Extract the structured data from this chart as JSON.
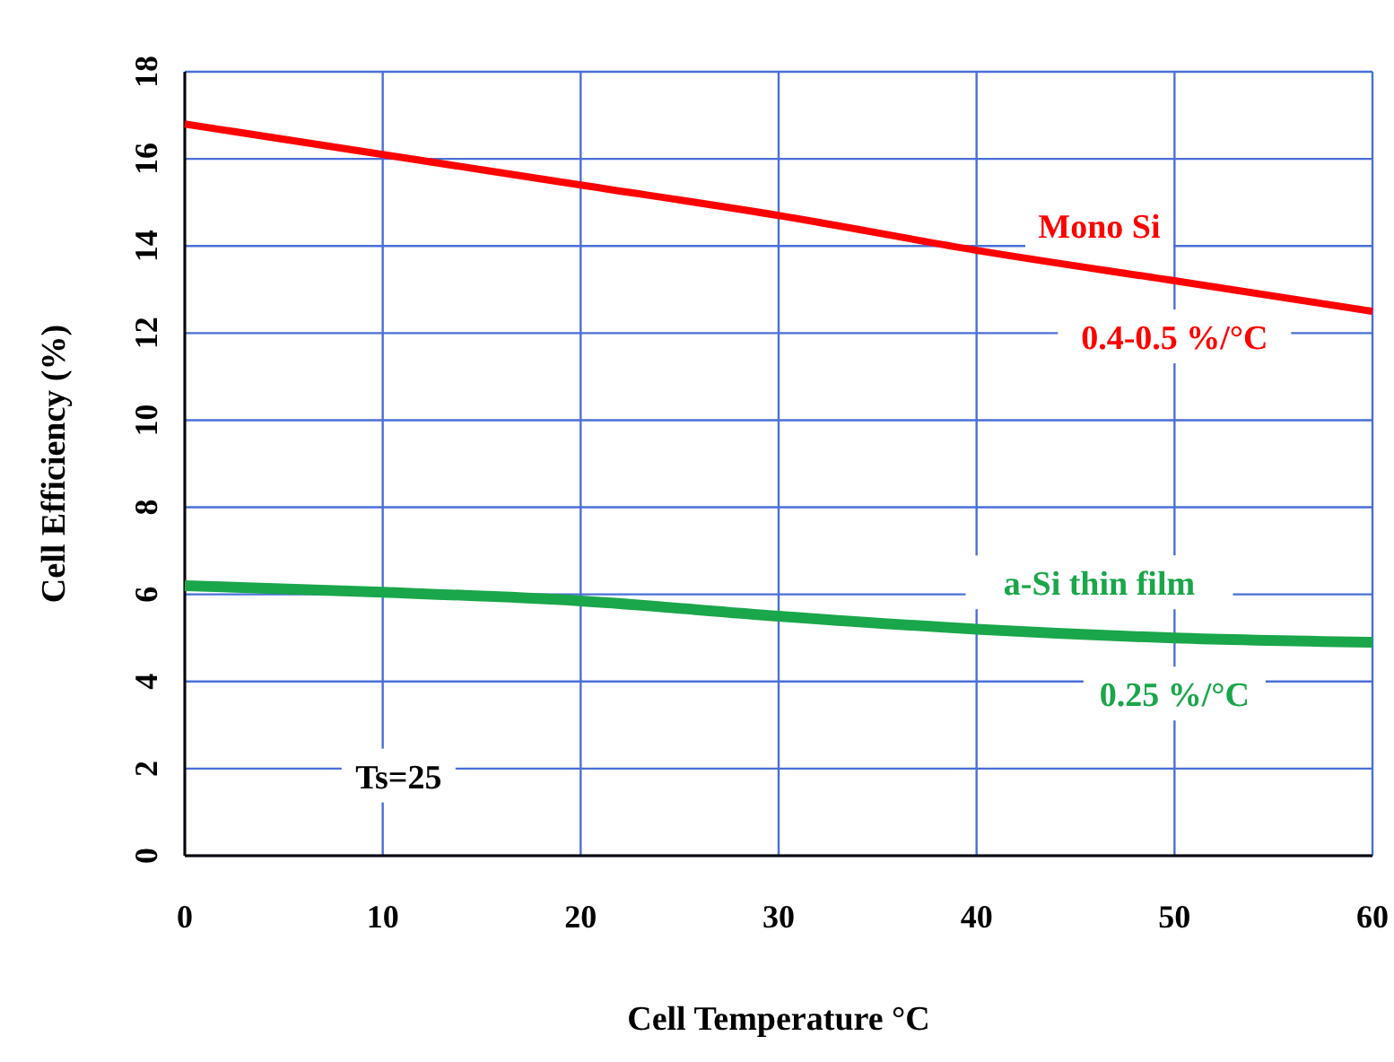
{
  "chart_data": {
    "type": "line",
    "xlabel": "Cell Temperature °C",
    "ylabel": "Cell Efficiency (%)",
    "x": [
      0,
      10,
      20,
      30,
      40,
      50,
      60
    ],
    "series": [
      {
        "name": "Mono Si",
        "color": "#ff0000",
        "values": [
          16.8,
          16.1,
          15.4,
          14.7,
          13.9,
          13.2,
          12.5
        ]
      },
      {
        "name": "a-Si thin film",
        "color": "#1aa64a",
        "values": [
          6.2,
          6.05,
          5.85,
          5.5,
          5.2,
          5.0,
          4.9
        ]
      }
    ],
    "xlim": [
      0,
      60
    ],
    "ylim": [
      0,
      18
    ],
    "xticks": [
      0,
      10,
      20,
      30,
      40,
      50,
      60
    ],
    "yticks": [
      0,
      2,
      4,
      6,
      8,
      10,
      12,
      14,
      16,
      18
    ],
    "grid": true,
    "marker": "none",
    "line_style": "solid",
    "annotations": [
      {
        "text": "0.4-0.5 %/°C",
        "x": 50,
        "y": 13.2
      },
      {
        "text": "0.25 %/°C",
        "x": 50,
        "y": 5.0
      },
      "Ts=25"
    ]
  }
}
